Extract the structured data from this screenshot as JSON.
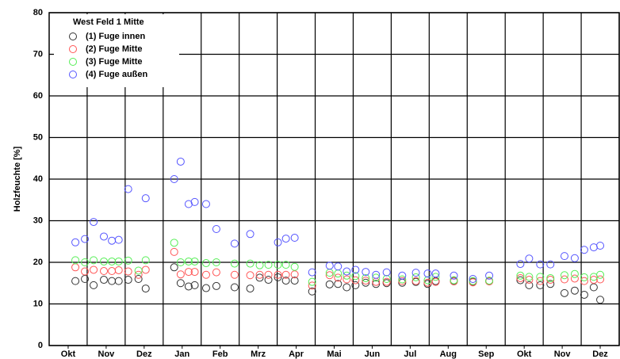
{
  "chart_data": {
    "type": "scatter",
    "ylabel": "Holzfeuchte [%]",
    "xlim": [
      0,
      15
    ],
    "xticks": [
      {
        "value": 0.5,
        "label": "Okt"
      },
      {
        "value": 1.5,
        "label": "Nov"
      },
      {
        "value": 2.5,
        "label": "Dez"
      },
      {
        "value": 3.5,
        "label": "Jan"
      },
      {
        "value": 4.5,
        "label": "Feb"
      },
      {
        "value": 5.5,
        "label": "Mrz"
      },
      {
        "value": 6.5,
        "label": "Apr"
      },
      {
        "value": 7.5,
        "label": "Mai"
      },
      {
        "value": 8.5,
        "label": "Jun"
      },
      {
        "value": 9.5,
        "label": "Jul"
      },
      {
        "value": 10.5,
        "label": "Aug"
      },
      {
        "value": 11.5,
        "label": "Sep"
      },
      {
        "value": 12.5,
        "label": "Okt"
      },
      {
        "value": 13.5,
        "label": "Nov"
      },
      {
        "value": 14.5,
        "label": "Dez"
      }
    ],
    "ylim": [
      0,
      80
    ],
    "yticks": [
      0,
      10,
      20,
      30,
      40,
      50,
      60,
      70,
      80
    ],
    "grid": true,
    "legend_title": "West Feld 1 Mitte",
    "legend": "upper left",
    "x": [
      0.69,
      0.94,
      1.17,
      1.44,
      1.65,
      1.83,
      2.08,
      2.35,
      2.54,
      3.29,
      3.46,
      3.67,
      3.83,
      4.13,
      4.4,
      4.88,
      5.29,
      5.54,
      5.77,
      6.02,
      6.23,
      6.46,
      6.92,
      7.38,
      7.6,
      7.83,
      8.06,
      8.33,
      8.6,
      8.88,
      9.29,
      9.65,
      9.96,
      10.17,
      10.65,
      11.15,
      11.58,
      12.4,
      12.63,
      12.92,
      13.19,
      13.56,
      13.83,
      14.08,
      14.33,
      14.5
    ],
    "series": [
      {
        "name": "(1) Fuge innen",
        "color": "#333333",
        "values": [
          15.5,
          16,
          14.5,
          15.8,
          15.5,
          15.5,
          15.8,
          16,
          13.7,
          18.8,
          15,
          14.2,
          14.5,
          13.8,
          14.3,
          14,
          13.7,
          16.3,
          15.8,
          16.4,
          15.6,
          15.6,
          13,
          14.7,
          14.8,
          14,
          14.5,
          15.1,
          14.8,
          15,
          15.1,
          15.3,
          14.8,
          15.5,
          15.6,
          15.3,
          15.5,
          15.7,
          14.5,
          14.5,
          14.8,
          12.6,
          13.2,
          12.2,
          14,
          11
        ]
      },
      {
        "name": "(2) Fuge Mitte",
        "color": "#ff5555",
        "values": [
          18.8,
          17.8,
          18.2,
          17.9,
          17.9,
          18.1,
          17.8,
          17,
          18.2,
          22.5,
          17.1,
          17.7,
          17.7,
          17,
          17.6,
          17,
          16.9,
          17,
          17,
          17,
          17,
          17.1,
          14.4,
          16.9,
          16.3,
          15.9,
          15.7,
          15.6,
          15.3,
          15.3,
          15.5,
          15.5,
          15.1,
          15.3,
          15.4,
          15.2,
          15.4,
          16.2,
          15.8,
          15.5,
          15.8,
          15.9,
          16.1,
          15.5,
          15.8,
          15.9
        ]
      },
      {
        "name": "(3) Fuge Mitte",
        "color": "#55ee55",
        "values": [
          20.5,
          20,
          20.5,
          20.2,
          20.2,
          20.2,
          20.4,
          18,
          20.5,
          24.7,
          20,
          20.2,
          20.2,
          19.8,
          20,
          19.7,
          19.7,
          19.3,
          19.4,
          19.4,
          19.4,
          18.9,
          15.3,
          17.5,
          17.3,
          16.8,
          16.7,
          16.2,
          16.3,
          16,
          15.9,
          16.4,
          15.7,
          16.5,
          15.7,
          15.5,
          15.6,
          16.8,
          16.5,
          16.5,
          16.2,
          16.9,
          17.2,
          16.4,
          16.5,
          17
        ]
      },
      {
        "name": "(4) Fuge außen",
        "color": "#5555ff",
        "values": [
          24.8,
          25.6,
          29.7,
          26.2,
          25.2,
          25.4,
          37.6,
          null,
          35.4,
          40,
          44.2,
          34,
          34.5,
          34,
          28,
          24.5,
          26.8,
          null,
          null,
          24.8,
          25.7,
          25.9,
          17.6,
          19.2,
          19,
          17.8,
          18.2,
          17.7,
          17,
          17.6,
          16.8,
          17.5,
          17.3,
          17.3,
          16.8,
          16,
          16.8,
          19.6,
          20.9,
          19.5,
          19.5,
          21.5,
          21,
          23,
          23.6,
          24
        ]
      }
    ]
  }
}
